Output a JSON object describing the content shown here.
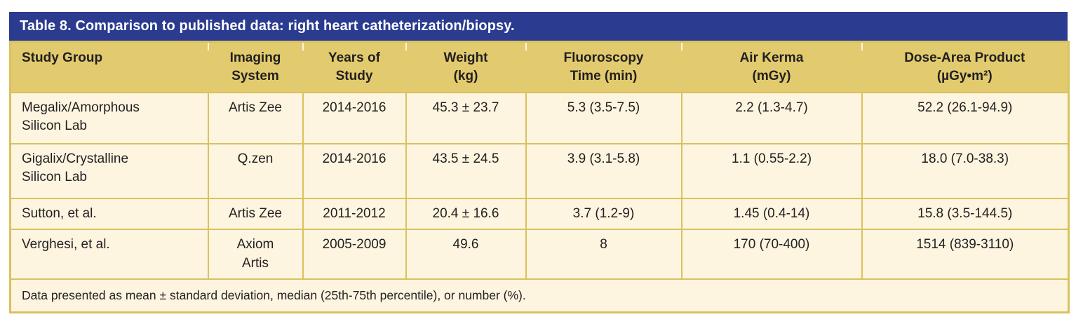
{
  "table": {
    "title": "Table 8. Comparison to published data: right heart catheterization/biopsy.",
    "columns": [
      {
        "label": "Study Group"
      },
      {
        "label": "Imaging\nSystem"
      },
      {
        "label": "Years of\nStudy"
      },
      {
        "label": "Weight\n(kg)"
      },
      {
        "label": "Fluoroscopy\nTime (min)"
      },
      {
        "label": "Air Kerma\n(mGy)"
      },
      {
        "label": "Dose-Area Product\n(µGy•m²)"
      }
    ],
    "rows": [
      {
        "cells": [
          "Megalix/Amorphous\nSilicon Lab",
          "Artis Zee",
          "2014-2016",
          "45.3 ± 23.7",
          "5.3 (3.5-7.5)",
          "2.2 (1.3-4.7)",
          "52.2 (26.1-94.9)"
        ]
      },
      {
        "cells": [
          "Gigalix/Crystalline\nSilicon Lab",
          "Q.zen",
          "2014-2016",
          "43.5 ± 24.5",
          "3.9 (3.1-5.8)",
          "1.1 (0.55-2.2)",
          "18.0 (7.0-38.3)"
        ]
      },
      {
        "cells": [
          "Sutton, et al.",
          "Artis Zee",
          "2011-2012",
          "20.4 ± 16.6",
          "3.7 (1.2-9)",
          "1.45 (0.4-14)",
          "15.8 (3.5-144.5)"
        ]
      },
      {
        "cells": [
          "Verghesi, et al.",
          "Axiom\nArtis",
          "2005-2009",
          "49.6",
          "8",
          "170 (70-400)",
          "1514 (839-3110)"
        ]
      }
    ],
    "footnote": "Data presented as mean ± standard deviation, median (25th-75th percentile), or number (%).",
    "colors": {
      "title_bar_bg": "#2b3b8f",
      "title_text": "#ffffff",
      "header_bg": "#e2cb6e",
      "cell_bg": "#fdf5e0",
      "border": "#d9c25f",
      "text": "#231f20"
    }
  }
}
